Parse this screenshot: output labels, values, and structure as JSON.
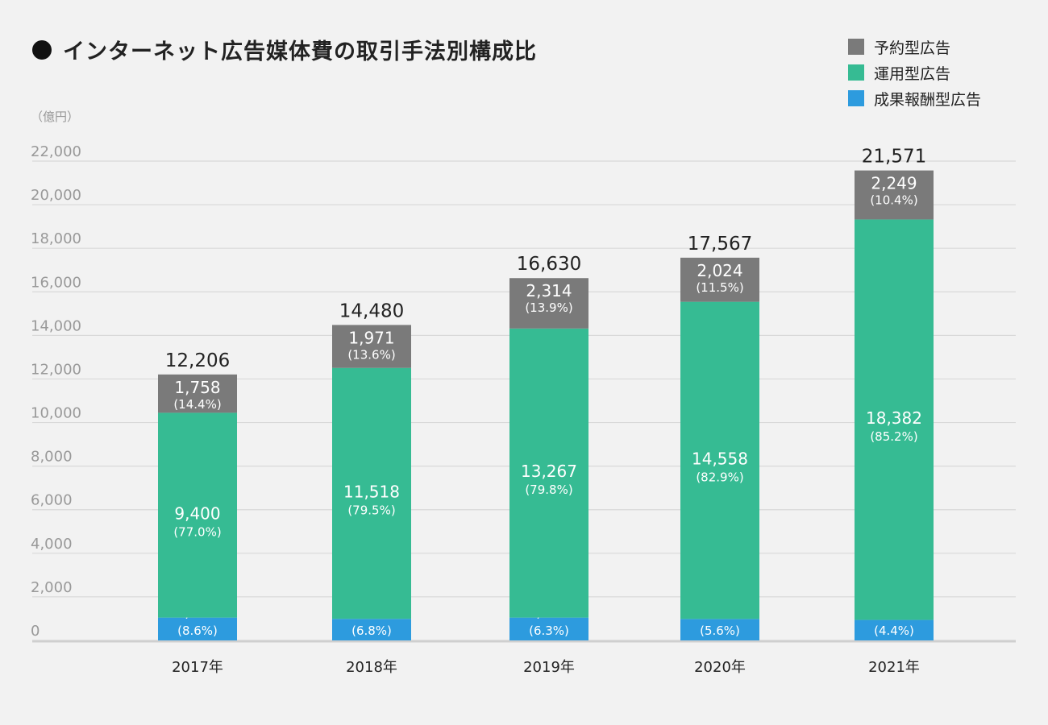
{
  "chart_data": {
    "type": "bar",
    "stacked": true,
    "title": "インターネット広告媒体費の取引手法別構成比",
    "unit_label": "（億円）",
    "categories": [
      "2017年",
      "2018年",
      "2019年",
      "2020年",
      "2021年"
    ],
    "ylim": [
      0,
      22000
    ],
    "yticks": [
      "0",
      "2,000",
      "4,000",
      "6,000",
      "8,000",
      "10,000",
      "12,000",
      "14,000",
      "16,000",
      "18,000",
      "20,000",
      "22,000"
    ],
    "grid": true,
    "legend_position": "top-right",
    "totals": [
      12206,
      14480,
      16630,
      17567,
      21571
    ],
    "total_labels": [
      "12,206",
      "14,480",
      "16,630",
      "17,567",
      "21,571"
    ],
    "series": [
      {
        "name": "成果報酬型広告",
        "color": "#2d9bde",
        "values": [
          1049,
          990,
          1049,
          985,
          940
        ],
        "value_labels": [
          "1,049",
          "990",
          "1,049",
          "985",
          "940"
        ],
        "pct_labels": [
          "(8.6%)",
          "(6.8%)",
          "(6.3%)",
          "(5.6%)",
          "(4.4%)"
        ]
      },
      {
        "name": "運用型広告",
        "color": "#36bb93",
        "values": [
          9400,
          11518,
          13267,
          14558,
          18382
        ],
        "value_labels": [
          "9,400",
          "11,518",
          "13,267",
          "14,558",
          "18,382"
        ],
        "pct_labels": [
          "(77.0%)",
          "(79.5%)",
          "(79.8%)",
          "(82.9%)",
          "(85.2%)"
        ]
      },
      {
        "name": "予約型広告",
        "color": "#7a7a7a",
        "values": [
          1758,
          1971,
          2314,
          2024,
          2249
        ],
        "value_labels": [
          "1,758",
          "1,971",
          "2,314",
          "2,024",
          "2,249"
        ],
        "pct_labels": [
          "(14.4%)",
          "(13.6%)",
          "(13.9%)",
          "(11.5%)",
          "(10.4%)"
        ]
      }
    ]
  }
}
